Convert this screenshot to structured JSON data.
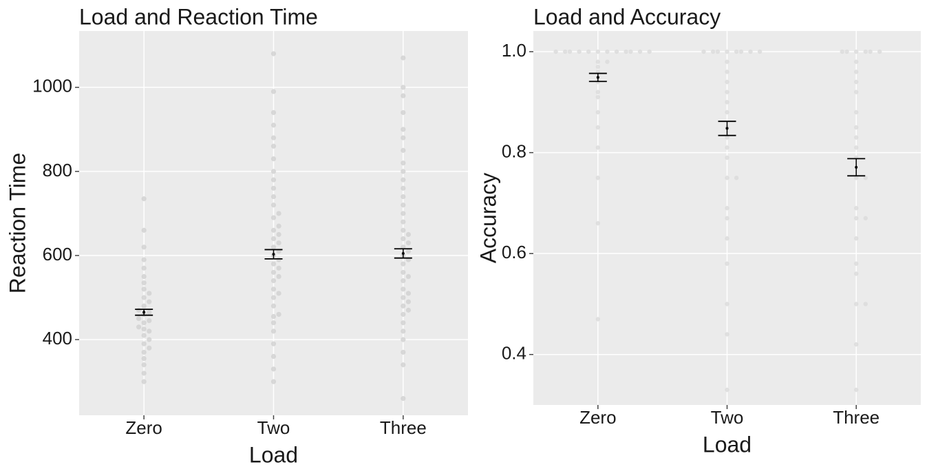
{
  "chart_data": [
    {
      "type": "beeswarm",
      "title": "Load and Reaction Time",
      "x_label": "Load",
      "y_label": "Reaction Time",
      "categories": [
        "Zero",
        "Two",
        "Three"
      ],
      "points": [
        [
          300,
          320,
          340,
          355,
          370,
          380,
          390,
          400,
          410,
          420,
          425,
          430,
          440,
          445,
          450,
          460,
          465,
          470,
          480,
          490,
          500,
          510,
          520,
          535,
          550,
          570,
          590,
          620,
          660,
          735
        ],
        [
          300,
          330,
          360,
          390,
          420,
          440,
          455,
          460,
          480,
          500,
          510,
          520,
          540,
          550,
          560,
          570,
          580,
          590,
          600,
          610,
          620,
          630,
          640,
          650,
          660,
          670,
          690,
          700,
          720,
          740,
          760,
          780,
          800,
          830,
          860,
          880,
          910,
          940,
          990,
          1080
        ],
        [
          260,
          340,
          370,
          400,
          420,
          440,
          460,
          470,
          480,
          490,
          500,
          510,
          520,
          540,
          550,
          560,
          580,
          590,
          600,
          610,
          620,
          630,
          640,
          650,
          660,
          680,
          700,
          720,
          740,
          760,
          780,
          800,
          820,
          850,
          880,
          900,
          940,
          980,
          1000,
          1070
        ]
      ],
      "means": [
        465,
        603,
        605
      ],
      "errors": [
        7,
        11,
        11
      ],
      "ylim": [
        220,
        1134
      ],
      "yticks": [
        400,
        600,
        800,
        1000
      ],
      "grid": true,
      "point_color": "#d2d2d2",
      "background": "#ebebeb"
    },
    {
      "type": "beeswarm",
      "title": "Load and Accuracy",
      "x_label": "Load",
      "y_label": "Accuracy",
      "categories": [
        "Zero",
        "Two",
        "Three"
      ],
      "points": [
        [
          1,
          1,
          1,
          1,
          1,
          1,
          1,
          1,
          1,
          1,
          1,
          1,
          0.98,
          0.98,
          0.97,
          0.96,
          0.95,
          0.94,
          0.92,
          0.91,
          0.88,
          0.85,
          0.81,
          0.75,
          0.66,
          0.47
        ],
        [
          1,
          1,
          1,
          1,
          1,
          1,
          1,
          1,
          0.98,
          0.96,
          0.94,
          0.92,
          0.9,
          0.88,
          0.85,
          0.83,
          0.81,
          0.79,
          0.75,
          0.75,
          0.69,
          0.67,
          0.63,
          0.58,
          0.5,
          0.44,
          0.33
        ],
        [
          1,
          1,
          1,
          1,
          1,
          1,
          0.98,
          0.96,
          0.94,
          0.92,
          0.88,
          0.85,
          0.83,
          0.81,
          0.79,
          0.75,
          0.75,
          0.69,
          0.67,
          0.67,
          0.63,
          0.58,
          0.56,
          0.5,
          0.5,
          0.42,
          0.33
        ]
      ],
      "means": [
        0.949,
        0.848,
        0.771
      ],
      "errors": [
        0.008,
        0.014,
        0.017
      ],
      "ylim": [
        0.3,
        1.041
      ],
      "yticks": [
        0.4,
        0.6,
        0.8,
        {
          "value": 1,
          "label": "1.0"
        }
      ],
      "grid": true,
      "point_color": "#dcdcdc",
      "background": "#ebebeb"
    }
  ]
}
